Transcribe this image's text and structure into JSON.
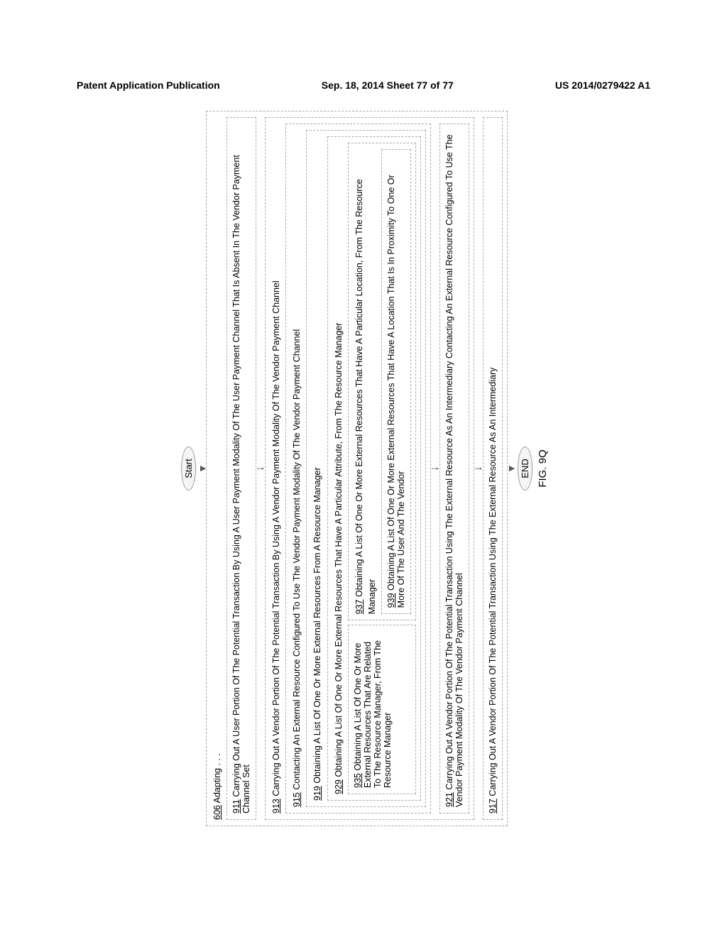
{
  "header": {
    "left": "Patent Application Publication",
    "center": "Sep. 18, 2014  Sheet 77 of 77",
    "right": "US 2014/0279422 A1"
  },
  "start": "Start",
  "end": "END",
  "fig": "FIG. 9Q",
  "box606": {
    "ref": "606",
    "text": " Adapting . . ."
  },
  "box911": {
    "ref": "911",
    "text": " Carrying Out A User Portion Of The Potential Transaction By Using A User Payment Modality Of The User Payment Channel That Is Absent In The Vendor Payment Channel Set"
  },
  "box913": {
    "ref": "913",
    "text": " Carrying Out A Vendor Portion Of The Potential Transaction By Using A Vendor Payment Modality Of The Vendor Payment Channel"
  },
  "box915": {
    "ref": "915",
    "text": " Contacting An External Resource Configured To Use The Vendor Payment Modality Of The Vendor Payment Channel"
  },
  "box919": {
    "ref": "919",
    "text": " Obtaining A List Of One Or More External Resources From A Resource Manager"
  },
  "box929": {
    "ref": "929",
    "text": " Obtaining A List Of One Or More External Resources That Have A Particular Attribute, From The Resource Manager"
  },
  "box935": {
    "ref": "935",
    "text": " Obtaining A List Of One Or More External Resources That Are Related To The Resource Manager, From The Resource Manager"
  },
  "box937": {
    "ref": "937",
    "text": " Obtaining A List Of One Or More External Resources That Have A Particular Location, From The Resource Manager"
  },
  "box939": {
    "ref": "939",
    "text": " Obtaining A List Of One Or More External Resources That Have A Location That Is In Proximity To One Or More Of The User And The Vendor"
  },
  "box921": {
    "ref": "921",
    "text": " Carrying Out A Vendor Portion Of The Potential Transaction Using The External Resource As An Intermediary Contacting An External Resource Configured To Use The Vendor Payment Modality Of The Vendor Payment Channel"
  },
  "box917": {
    "ref": "917",
    "text": " Carrying Out A Vendor Portion Of The Potential Transaction Using The External Resource As An Intermediary"
  }
}
